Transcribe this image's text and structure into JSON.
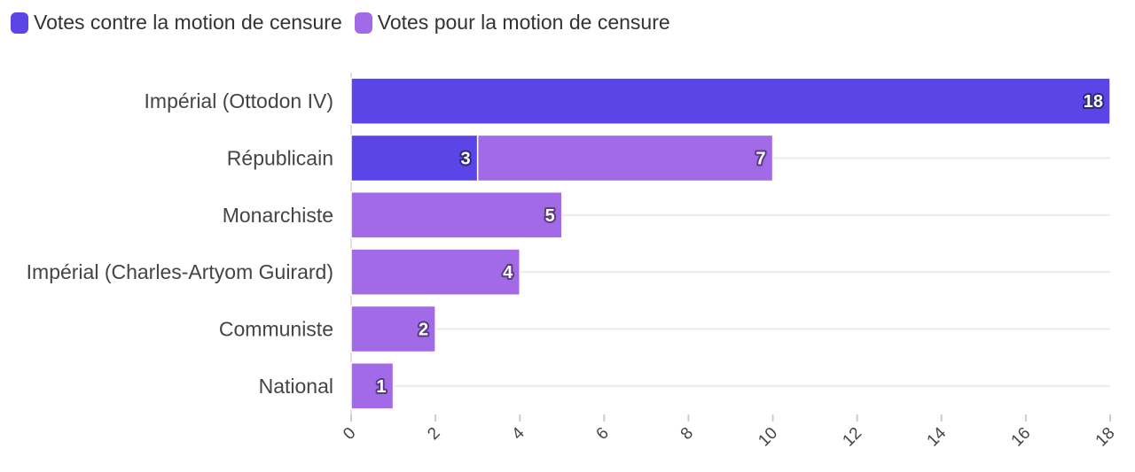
{
  "chart_data": {
    "type": "bar",
    "orientation": "horizontal",
    "stacked": true,
    "categories": [
      "Impérial (Ottodon IV)",
      "Républicain",
      "Monarchiste",
      "Impérial (Charles-Artyom Guirard)",
      "Communiste",
      "National"
    ],
    "series": [
      {
        "name": "Votes contre la motion de censure",
        "color": "#5b45e6",
        "values": [
          18,
          3,
          0,
          0,
          0,
          0
        ]
      },
      {
        "name": "Votes pour la motion de censure",
        "color": "#a36ae8",
        "values": [
          0,
          7,
          5,
          4,
          2,
          1
        ]
      }
    ],
    "xlim": [
      0,
      18
    ],
    "xticks": [
      "0",
      "2",
      "4",
      "6",
      "8",
      "10",
      "12",
      "14",
      "16",
      "18"
    ],
    "xtick_values": [
      0,
      2,
      4,
      6,
      8,
      10,
      12,
      14,
      16,
      18
    ],
    "grid": true,
    "legend_position": "top-left"
  }
}
